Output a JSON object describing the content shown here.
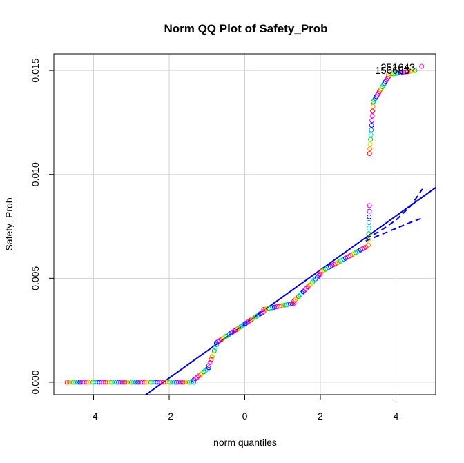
{
  "chart_data": {
    "type": "scatter",
    "title": "Norm QQ Plot of Safety_Prob",
    "xlabel": "norm quantiles",
    "ylabel": "Safety_Prob",
    "xlim": [
      -5.05,
      5.05
    ],
    "ylim": [
      -0.0006,
      0.0158
    ],
    "x_ticks": [
      -4,
      -2,
      0,
      2,
      4
    ],
    "y_ticks": [
      0.0,
      0.005,
      0.01,
      0.015
    ],
    "x_tick_labels": [
      "-4",
      "-2",
      "0",
      "2",
      "4"
    ],
    "y_tick_labels": [
      "0.000",
      "0.005",
      "0.010",
      "0.015"
    ],
    "grid": true,
    "legend": "none",
    "point_colors": [
      "#ff0000",
      "#ff8000",
      "#e0e000",
      "#00cc00",
      "#00e0e0",
      "#0080ff",
      "#0000ff",
      "#b000ff",
      "#ff00ff"
    ],
    "line_color": "#0000cc",
    "reference_line": {
      "slope": 0.0013,
      "intercept": 0.0028
    },
    "confidence_band": {
      "x": [
        3.2,
        3.6,
        4.0,
        4.4,
        4.7
      ],
      "upper": [
        0.0069,
        0.0073,
        0.0078,
        0.0085,
        0.0093
      ],
      "lower": [
        0.0068,
        0.0071,
        0.0074,
        0.0077,
        0.0079
      ]
    },
    "points": {
      "segments": [
        {
          "x_start": -4.7,
          "x_end": -1.35,
          "y_start": 0.0,
          "y_end": 0.0,
          "count": 60
        },
        {
          "x_start": -1.35,
          "x_end": -0.95,
          "y_start": 0.0001,
          "y_end": 0.0007,
          "count": 10
        },
        {
          "x_start": -0.95,
          "x_end": -0.75,
          "y_start": 0.0008,
          "y_end": 0.0018,
          "count": 8
        },
        {
          "x_start": -0.75,
          "x_end": 0.5,
          "y_start": 0.0019,
          "y_end": 0.0034,
          "count": 30
        },
        {
          "x_start": 0.5,
          "x_end": 1.3,
          "y_start": 0.0035,
          "y_end": 0.0038,
          "count": 18
        },
        {
          "x_start": 1.3,
          "x_end": 2.0,
          "y_start": 0.0039,
          "y_end": 0.0052,
          "count": 18
        },
        {
          "x_start": 2.0,
          "x_end": 3.2,
          "y_start": 0.0053,
          "y_end": 0.0065,
          "count": 28
        },
        {
          "x_start": 3.27,
          "x_end": 3.3,
          "y_start": 0.0066,
          "y_end": 0.0085,
          "count": 8
        },
        {
          "x_start": 3.3,
          "x_end": 3.4,
          "y_start": 0.011,
          "y_end": 0.0135,
          "count": 12
        },
        {
          "x_start": 3.4,
          "x_end": 3.8,
          "y_start": 0.0135,
          "y_end": 0.0147,
          "count": 16
        },
        {
          "x_start": 3.8,
          "x_end": 4.5,
          "y_start": 0.0148,
          "y_end": 0.015,
          "count": 12
        }
      ],
      "extra": [
        {
          "x": 4.68,
          "y": 0.0152
        }
      ]
    },
    "annotations": [
      {
        "text": "251643",
        "x": 4.05,
        "y": 0.01515
      },
      {
        "text": "156685",
        "x": 3.9,
        "y": 0.015
      }
    ]
  }
}
